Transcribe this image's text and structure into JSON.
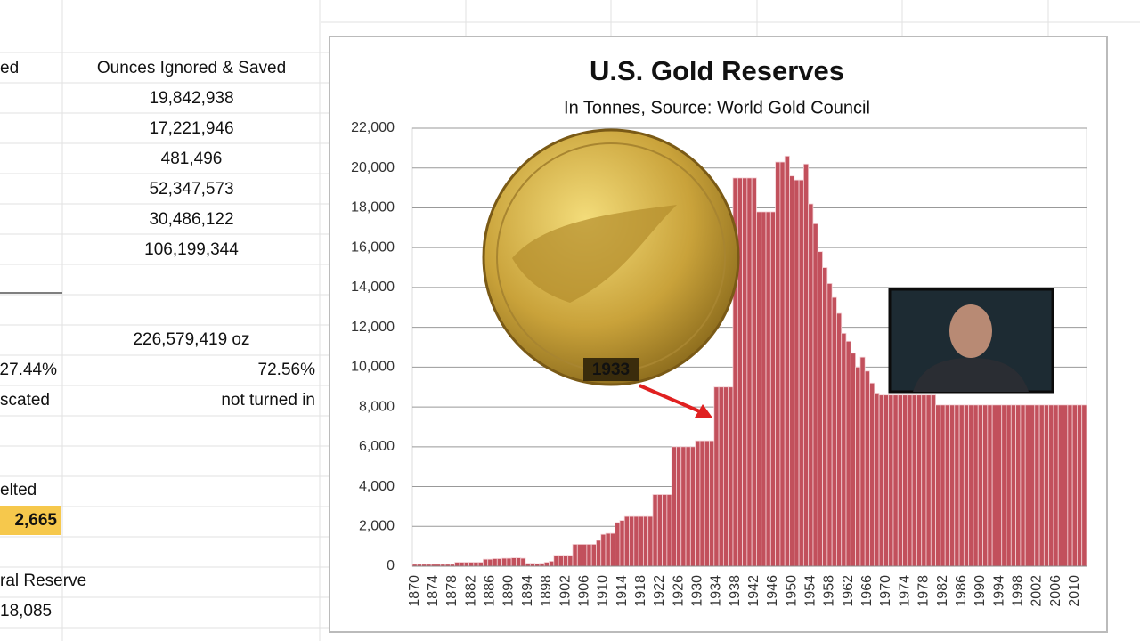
{
  "sheet": {
    "header_left": "ed",
    "header": "Ounces Ignored & Saved",
    "amounts": [
      "19,842,938",
      "17,221,946",
      "481,496",
      "52,347,573",
      "30,486,122",
      "106,199,344"
    ],
    "total": "226,579,419 oz",
    "pct_left": "27.44%",
    "pct_right": "72.56%",
    "label_left": "scated",
    "label_right": "not turned in",
    "melted": "elted",
    "highlight": "2,665",
    "reserve": "ral Reserve",
    "reserve_value": "18,085"
  },
  "overlays": {
    "coin_year": "1933"
  },
  "chart_data": {
    "type": "bar",
    "title": "U.S. Gold Reserves",
    "subtitle": "In Tonnes, Source: World Gold Council",
    "color": "#c2505c",
    "grid": true,
    "ylim": [
      0,
      22000
    ],
    "yticks": [
      0,
      {
        "value": 2000,
        "label": "2,000"
      },
      {
        "value": 4000,
        "label": "4,000"
      },
      {
        "value": 6000,
        "label": "6,000"
      },
      {
        "value": 8000,
        "label": "8,000"
      },
      {
        "value": 10000,
        "label": "10,000"
      },
      {
        "value": 12000,
        "label": "12,000"
      },
      {
        "value": 14000,
        "label": "14,000"
      },
      {
        "value": 16000,
        "label": "16,000"
      },
      {
        "value": 18000,
        "label": "18,000"
      },
      {
        "value": 20000,
        "label": "20,000"
      },
      {
        "value": 22000,
        "label": "22,000"
      }
    ],
    "categories": [
      "1870",
      null,
      null,
      null,
      "1874",
      null,
      null,
      null,
      "1878",
      null,
      null,
      null,
      "1882",
      null,
      null,
      null,
      "1886",
      null,
      null,
      null,
      "1890",
      null,
      null,
      null,
      "1894",
      null,
      null,
      null,
      "1898",
      null,
      null,
      null,
      "1902",
      null,
      null,
      null,
      "1906",
      null,
      null,
      null,
      "1910",
      null,
      null,
      null,
      "1914",
      null,
      null,
      null,
      "1918",
      null,
      null,
      null,
      "1922",
      null,
      null,
      null,
      "1926",
      null,
      null,
      null,
      "1930",
      null,
      null,
      null,
      "1934",
      null,
      null,
      null,
      "1938",
      null,
      null,
      null,
      "1942",
      null,
      null,
      null,
      "1946",
      null,
      null,
      null,
      "1950",
      null,
      null,
      null,
      "1954",
      null,
      null,
      null,
      "1958",
      null,
      null,
      null,
      "1962",
      null,
      null,
      null,
      "1966",
      null,
      null,
      null,
      "1970",
      null,
      null,
      null,
      "1974",
      null,
      null,
      null,
      "1978",
      null,
      null,
      null,
      "1982",
      null,
      null,
      null,
      "1986",
      null,
      null,
      null,
      "1990",
      null,
      null,
      null,
      "1994",
      null,
      null,
      null,
      "1998",
      null,
      null,
      null,
      "2002",
      null,
      null,
      null,
      "2006",
      null,
      null,
      null,
      "2010",
      null,
      null
    ],
    "values": [
      100,
      100,
      100,
      100,
      100,
      100,
      100,
      100,
      100,
      200,
      200,
      200,
      200,
      200,
      200,
      350,
      350,
      380,
      380,
      400,
      400,
      420,
      420,
      400,
      150,
      150,
      130,
      150,
      200,
      250,
      550,
      550,
      550,
      550,
      1100,
      1100,
      1100,
      1100,
      1100,
      1300,
      1600,
      1650,
      1650,
      2200,
      2300,
      2500,
      2500,
      2500,
      2500,
      2500,
      2500,
      3600,
      3600,
      3600,
      3600,
      6000,
      6000,
      6000,
      6000,
      6000,
      6300,
      6300,
      6300,
      6300,
      9000,
      9000,
      9000,
      9000,
      19500,
      19500,
      19500,
      19500,
      19500,
      17800,
      17800,
      17800,
      17800,
      20300,
      20300,
      20600,
      19600,
      19400,
      19400,
      20200,
      18200,
      17200,
      15800,
      15000,
      14200,
      13500,
      12700,
      11700,
      11300,
      10700,
      10000,
      10500,
      9800,
      9200,
      8700,
      8600,
      8600,
      8600,
      8600,
      8600,
      8600,
      8600,
      8600,
      8600,
      8600,
      8600,
      8600,
      8100,
      8100,
      8100,
      8100,
      8100,
      8100,
      8100,
      8100,
      8100,
      8100,
      8100,
      8100,
      8100,
      8100,
      8100,
      8100,
      8100,
      8100,
      8100,
      8100,
      8100,
      8100,
      8100,
      8100,
      8100,
      8100,
      8100,
      8100,
      8100,
      8100,
      8100,
      8100
    ]
  }
}
